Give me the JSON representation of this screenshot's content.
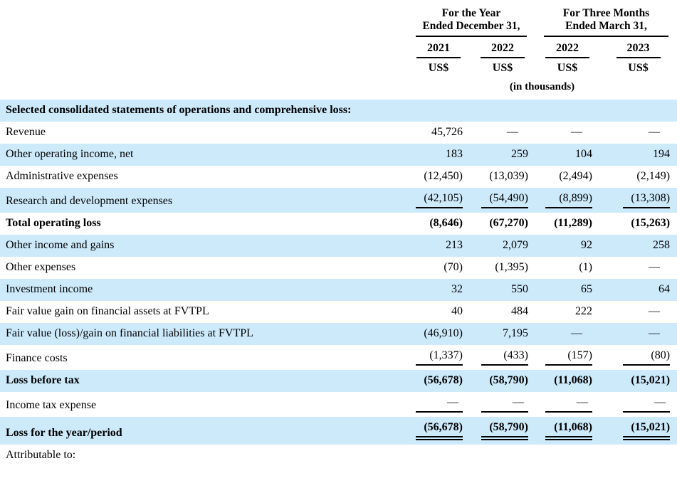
{
  "document": {
    "background": "#ffffff",
    "shade_color": "#cdeafb",
    "rule_color": "#000000"
  },
  "table": {
    "header": {
      "groups": [
        {
          "line1": "For the Year",
          "line2": "Ended December 31,"
        },
        {
          "line1": "For Three Months",
          "line2": "Ended March 31,"
        }
      ],
      "years": [
        "2021",
        "2022",
        "2022",
        "2023"
      ],
      "currency": [
        "US$",
        "US$",
        "US$",
        "US$"
      ],
      "units_note": "(in thousands)"
    },
    "rows": [
      {
        "label": "Selected consolidated statements of operations and comprehensive loss:",
        "values": [
          "",
          "",
          "",
          ""
        ],
        "section": true,
        "bold": true,
        "shaded": true
      },
      {
        "label": "Revenue",
        "values": [
          "45,726",
          "—",
          "—",
          "—"
        ],
        "shaded": false
      },
      {
        "label": "Other operating income, net",
        "values": [
          "183",
          "259",
          "104",
          "194"
        ],
        "shaded": true
      },
      {
        "label": "Administrative expenses",
        "values": [
          "(12,450)",
          "(13,039)",
          "(2,494)",
          "(2,149)"
        ],
        "shaded": false
      },
      {
        "label": "Research and development expenses",
        "values": [
          "(42,105)",
          "(54,490)",
          "(8,899)",
          "(13,308)"
        ],
        "shaded": true,
        "rule_below": true
      },
      {
        "label": "Total operating loss",
        "values": [
          "(8,646)",
          "(67,270)",
          "(11,289)",
          "(15,263)"
        ],
        "bold": true,
        "shaded": false
      },
      {
        "label": "Other income and gains",
        "values": [
          "213",
          "2,079",
          "92",
          "258"
        ],
        "shaded": true
      },
      {
        "label": "Other expenses",
        "values": [
          "(70)",
          "(1,395)",
          "(1)",
          "—"
        ],
        "shaded": false
      },
      {
        "label": "Investment income",
        "values": [
          "32",
          "550",
          "65",
          "64"
        ],
        "shaded": true
      },
      {
        "label": "Fair value gain on financial assets at FVTPL",
        "values": [
          "40",
          "484",
          "222",
          "—"
        ],
        "shaded": false
      },
      {
        "label": "Fair value (loss)/gain on financial liabilities at FVTPL",
        "values": [
          "(46,910)",
          "7,195",
          "—",
          "—"
        ],
        "shaded": true
      },
      {
        "label": "Finance costs",
        "values": [
          "(1,337)",
          "(433)",
          "(157)",
          "(80)"
        ],
        "shaded": false,
        "rule_below": true
      },
      {
        "label": "Loss before tax",
        "values": [
          "(56,678)",
          "(58,790)",
          "(11,068)",
          "(15,021)"
        ],
        "bold": true,
        "shaded": true
      },
      {
        "label": "Income tax expense",
        "values": [
          "—",
          "—",
          "—",
          "—"
        ],
        "shaded": false,
        "rule_below": true
      },
      {
        "label": "Loss for the year/period",
        "values": [
          "(56,678)",
          "(58,790)",
          "(11,068)",
          "(15,021)"
        ],
        "bold": true,
        "shaded": true,
        "double_rule_below": true
      },
      {
        "label": "Attributable to:",
        "values": [
          "",
          "",
          "",
          ""
        ],
        "shaded": false
      }
    ]
  }
}
